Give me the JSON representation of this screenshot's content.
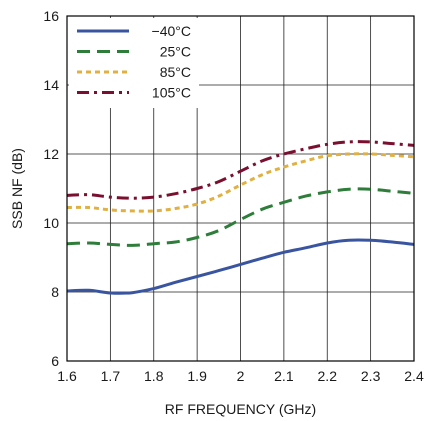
{
  "chart_data": {
    "type": "line",
    "title": "",
    "xlabel": "RF FREQUENCY (GHz)",
    "ylabel": "SSB NF (dB)",
    "xlim": [
      1.6,
      2.4
    ],
    "ylim": [
      6,
      16
    ],
    "x_ticks": [
      "1.6",
      "1.7",
      "1.8",
      "1.9",
      "2",
      "2.1",
      "2.2",
      "2.3",
      "2.4"
    ],
    "y_ticks": [
      "6",
      "8",
      "10",
      "12",
      "14",
      "16"
    ],
    "grid": true,
    "legend_position": "top-left",
    "series": [
      {
        "name": "−40°C",
        "color": "#3a55a0",
        "dash": "solid",
        "x": [
          1.6,
          1.65,
          1.7,
          1.75,
          1.8,
          1.85,
          1.9,
          1.95,
          2.0,
          2.05,
          2.1,
          2.15,
          2.2,
          2.25,
          2.3,
          2.35,
          2.4
        ],
        "values": [
          8.03,
          8.05,
          7.97,
          7.98,
          8.1,
          8.28,
          8.45,
          8.62,
          8.8,
          8.98,
          9.15,
          9.28,
          9.42,
          9.5,
          9.5,
          9.45,
          9.38
        ]
      },
      {
        "name": "25°C",
        "color": "#2e7d3a",
        "dash": "long-dash",
        "x": [
          1.6,
          1.65,
          1.7,
          1.75,
          1.8,
          1.85,
          1.9,
          1.95,
          2.0,
          2.05,
          2.1,
          2.15,
          2.2,
          2.25,
          2.3,
          2.35,
          2.4
        ],
        "values": [
          9.4,
          9.42,
          9.38,
          9.35,
          9.4,
          9.45,
          9.58,
          9.78,
          10.1,
          10.4,
          10.6,
          10.78,
          10.9,
          10.98,
          10.98,
          10.92,
          10.86
        ]
      },
      {
        "name": "85°C",
        "color": "#e0b040",
        "dash": "short-dash",
        "x": [
          1.6,
          1.65,
          1.7,
          1.75,
          1.8,
          1.85,
          1.9,
          1.95,
          2.0,
          2.05,
          2.1,
          2.15,
          2.2,
          2.25,
          2.3,
          2.35,
          2.4
        ],
        "values": [
          10.45,
          10.45,
          10.38,
          10.35,
          10.35,
          10.42,
          10.55,
          10.78,
          11.1,
          11.4,
          11.62,
          11.8,
          11.95,
          12.0,
          12.0,
          11.96,
          11.92
        ]
      },
      {
        "name": "105°C",
        "color": "#7a1030",
        "dash": "dash-dot",
        "x": [
          1.6,
          1.65,
          1.7,
          1.75,
          1.8,
          1.85,
          1.9,
          1.95,
          2.0,
          2.05,
          2.1,
          2.15,
          2.2,
          2.25,
          2.3,
          2.35,
          2.4
        ],
        "values": [
          10.8,
          10.82,
          10.75,
          10.72,
          10.75,
          10.85,
          11.0,
          11.2,
          11.5,
          11.8,
          12.0,
          12.15,
          12.28,
          12.35,
          12.35,
          12.3,
          12.25
        ]
      }
    ]
  }
}
